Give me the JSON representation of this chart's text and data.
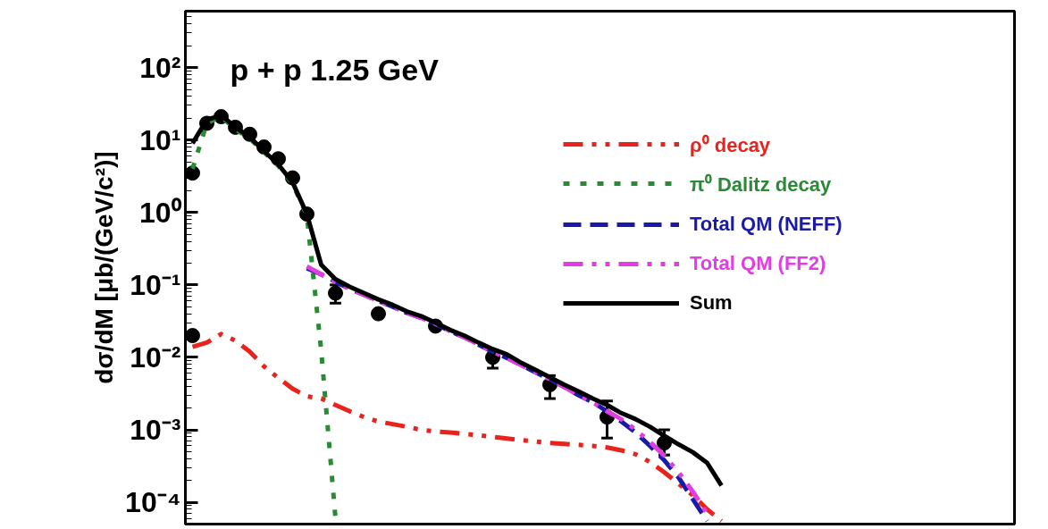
{
  "chart_data": {
    "type": "line",
    "title": "p + p   1.25 GeV",
    "ylabel": "dσ/dM [μb/(GeV/c²)]",
    "categories": [
      null,
      null,
      null,
      null,
      null,
      null,
      null,
      null,
      null,
      null,
      null,
      null,
      null,
      null,
      null,
      null,
      null,
      null,
      null,
      null,
      null,
      null,
      null,
      null,
      null,
      null,
      null,
      null,
      null,
      null,
      null,
      null,
      null,
      null,
      null,
      null,
      null,
      null,
      null,
      null,
      null,
      null,
      null,
      null,
      null,
      null,
      null,
      null,
      null,
      null,
      null,
      null,
      null,
      null,
      null,
      null,
      null,
      null
    ],
    "ylim": [
      5e-05,
      600
    ],
    "yticks": [
      {
        "value": 0.0001,
        "label": "10⁻⁴"
      },
      {
        "value": 0.001,
        "label": "10⁻³"
      },
      {
        "value": 0.01,
        "label": "10⁻²"
      },
      {
        "value": 0.1,
        "label": "10⁻¹"
      },
      {
        "value": 1,
        "label": "10⁰"
      },
      {
        "value": 10,
        "label": "10¹"
      },
      {
        "value": 100,
        "label": "10²"
      }
    ],
    "log": "y",
    "grid": false,
    "legend": "top right",
    "tick_labels": "y",
    "series": [
      {
        "type": "scatter",
        "color": "#000000",
        "marker": "circle",
        "values": [
          3.5,
          17,
          21,
          15,
          12,
          8,
          5.5,
          3.0,
          0.95,
          null,
          0.077,
          null,
          null,
          0.04,
          null,
          null,
          null,
          0.027,
          null,
          null,
          null,
          0.01,
          null,
          null,
          null,
          0.0042,
          null,
          null,
          null,
          0.0015,
          null,
          null,
          null,
          0.00066,
          null,
          null,
          null,
          null,
          null,
          null,
          null,
          null,
          null,
          null,
          null,
          null,
          null,
          null,
          null,
          null,
          null,
          null,
          null,
          null,
          null,
          null,
          null,
          null
        ],
        "errors": [
          null,
          null,
          null,
          null,
          null,
          null,
          null,
          null,
          null,
          null,
          [
            0.056,
            0.1
          ],
          null,
          null,
          null,
          null,
          null,
          null,
          null,
          null,
          null,
          null,
          [
            0.0071,
            0.0126
          ],
          null,
          null,
          null,
          [
            0.0027,
            0.0056
          ],
          null,
          null,
          null,
          [
            0.00077,
            0.0025
          ],
          null,
          null,
          null,
          [
            0.00045,
            0.001
          ],
          null,
          null,
          null,
          null,
          null,
          null,
          null,
          null,
          null,
          null,
          null,
          null,
          null,
          null,
          null,
          null,
          null,
          null,
          null,
          null,
          null,
          null,
          null,
          null
        ]
      },
      {
        "type": "scatter",
        "color": "#000000",
        "marker": "circle",
        "values": [
          0.02,
          null,
          null,
          null,
          null,
          null,
          null,
          null,
          null,
          null,
          null,
          null,
          null,
          null,
          null,
          null,
          null,
          null,
          null,
          null,
          null,
          null,
          null,
          null,
          null,
          null,
          null,
          null,
          null,
          null,
          null,
          null,
          null,
          null,
          null,
          null,
          null,
          null,
          null,
          null,
          null,
          null,
          null,
          null,
          null,
          null,
          null,
          null,
          null,
          null,
          null,
          null,
          null,
          null,
          null,
          null,
          null,
          null
        ]
      },
      {
        "name": "ρ⁰ decay",
        "color": "#e8231c",
        "line_style": "dashdot",
        "values": [
          0.014,
          0.016,
          0.021,
          0.017,
          0.012,
          0.0075,
          0.0052,
          0.0037,
          0.0029,
          0.0027,
          0.0022,
          0.0018,
          0.0015,
          0.0013,
          0.0012,
          0.0011,
          0.001,
          0.00095,
          0.00092,
          0.00088,
          0.00084,
          0.0008,
          0.00076,
          0.00072,
          0.00069,
          0.00066,
          0.00064,
          0.00062,
          0.0006,
          0.00057,
          0.00052,
          0.00046,
          0.00036,
          0.00026,
          0.00018,
          0.000125,
          8e-05,
          5.5e-05,
          null,
          null,
          null,
          null,
          null,
          null,
          null,
          null,
          null,
          null,
          null,
          null,
          null,
          null,
          null,
          null,
          null,
          null,
          null,
          null
        ]
      },
      {
        "name": "π⁰ Dalitz decay",
        "color": "#2a8a36",
        "line_style": "dotted",
        "values": [
          4,
          17,
          21,
          14,
          10.5,
          6.8,
          4.4,
          2.5,
          0.9,
          0.0125,
          6e-05,
          null,
          null,
          null,
          null,
          null,
          null,
          null,
          null,
          null,
          null,
          null,
          null,
          null,
          null,
          null,
          null,
          null,
          null,
          null,
          null,
          null,
          null,
          null,
          null,
          null,
          null,
          null,
          null,
          null,
          null,
          null,
          null,
          null,
          null,
          null,
          null,
          null,
          null,
          null,
          null,
          null,
          null,
          null,
          null,
          null,
          null,
          null
        ]
      },
      {
        "name": "Total QM (NEFF)",
        "color": "#1a1aa8",
        "line_style": "dashed",
        "values": [
          null,
          null,
          null,
          null,
          null,
          null,
          null,
          null,
          0.17,
          0.14,
          0.11,
          0.088,
          0.073,
          0.06,
          0.05,
          0.041,
          0.035,
          0.029,
          0.023,
          0.019,
          0.015,
          0.012,
          0.0098,
          0.0078,
          0.0062,
          0.005,
          0.0039,
          0.003,
          0.0024,
          0.0018,
          0.0013,
          0.00092,
          0.0006,
          0.00038,
          0.00022,
          0.00011,
          5.5e-05,
          null,
          null,
          null,
          null,
          null,
          null,
          null,
          null,
          null,
          null,
          null,
          null,
          null,
          null,
          null,
          null,
          null,
          null,
          null,
          null,
          null
        ]
      },
      {
        "name": "Total QM (FF2)",
        "color": "#e03ee0",
        "line_style": "dashdot",
        "values": [
          null,
          null,
          null,
          null,
          null,
          null,
          null,
          null,
          0.18,
          0.14,
          0.11,
          0.088,
          0.073,
          0.06,
          0.05,
          0.041,
          0.035,
          0.029,
          0.023,
          0.019,
          0.015,
          0.012,
          0.0098,
          0.0078,
          0.0062,
          0.005,
          0.0039,
          0.003,
          0.0024,
          0.0018,
          0.0014,
          0.001,
          0.00068,
          0.00044,
          0.00026,
          0.00014,
          7e-05,
          null,
          null,
          null,
          null,
          null,
          null,
          null,
          null,
          null,
          null,
          null,
          null,
          null,
          null,
          null,
          null,
          null,
          null,
          null,
          null,
          null
        ]
      },
      {
        "name": "Sum",
        "color": "#000000",
        "line_style": "solid",
        "values": [
          9,
          19,
          22,
          15,
          11,
          7,
          4.6,
          2.6,
          0.95,
          0.19,
          0.12,
          0.094,
          0.077,
          0.063,
          0.053,
          0.043,
          0.037,
          0.03,
          0.024,
          0.02,
          0.016,
          0.013,
          0.011,
          0.0084,
          0.0067,
          0.0053,
          0.0042,
          0.0034,
          0.0027,
          0.0022,
          0.0017,
          0.0014,
          0.0011,
          0.00083,
          0.00063,
          0.00049,
          0.00035,
          0.00017,
          null,
          null,
          null,
          null,
          null,
          null,
          null,
          null,
          null,
          null,
          null,
          null,
          null,
          null,
          null,
          null,
          null,
          null,
          null,
          null
        ]
      }
    ]
  }
}
